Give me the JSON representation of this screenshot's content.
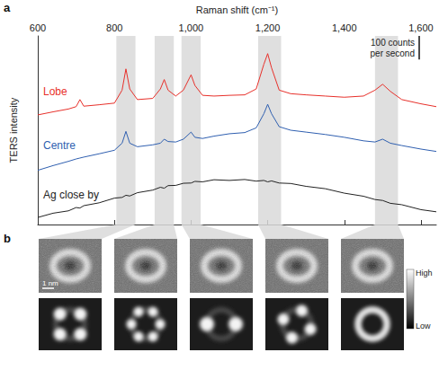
{
  "panel_labels": [
    "a",
    "b"
  ],
  "chart_data": {
    "type": "line",
    "x_label": "Raman shift (cm⁻¹)",
    "y_label": "TERS intensity",
    "x": [
      600,
      640,
      680,
      700,
      710,
      720,
      760,
      800,
      820,
      830,
      840,
      860,
      900,
      920,
      930,
      940,
      960,
      980,
      1000,
      1010,
      1030,
      1060,
      1100,
      1140,
      1170,
      1190,
      1200,
      1210,
      1230,
      1260,
      1300,
      1350,
      1400,
      1450,
      1480,
      1500,
      1520,
      1550,
      1600,
      1640
    ],
    "series": [
      {
        "name": "Lobe",
        "color": "#e8302a",
        "values": [
          465,
          478,
          490,
          500,
          530,
          502,
          508,
          515,
          570,
          660,
          575,
          530,
          535,
          575,
          615,
          570,
          545,
          570,
          635,
          590,
          548,
          545,
          548,
          550,
          575,
          680,
          725,
          665,
          570,
          555,
          550,
          545,
          540,
          545,
          570,
          595,
          565,
          530,
          512,
          500
        ]
      },
      {
        "name": "Centre",
        "color": "#2f5fb0",
        "values": [
          230,
          250,
          268,
          278,
          282,
          286,
          300,
          315,
          345,
          395,
          345,
          330,
          338,
          345,
          362,
          352,
          350,
          362,
          392,
          370,
          365,
          375,
          385,
          390,
          410,
          470,
          510,
          470,
          415,
          400,
          392,
          382,
          370,
          355,
          350,
          362,
          345,
          335,
          320,
          310
        ]
      },
      {
        "name": "Ag close by",
        "color": "#222222",
        "values": [
          30,
          48,
          58,
          72,
          70,
          80,
          92,
          112,
          115,
          124,
          121,
          135,
          146,
          158,
          154,
          165,
          166,
          175,
          176,
          183,
          181,
          190,
          187,
          191,
          184,
          187,
          181,
          185,
          176,
          174,
          162,
          152,
          133,
          120,
          106,
          102,
          90,
          84,
          63,
          54
        ]
      }
    ],
    "xlim": [
      600,
      1640
    ],
    "xticks": [
      600,
      800,
      {
        "value": 1000,
        "label": "1,000"
      },
      {
        "value": 1200,
        "label": "1,200"
      },
      {
        "value": 1400,
        "label": "1,400"
      },
      {
        "value": 1600,
        "label": "1,600"
      }
    ],
    "ylim": [
      0,
      800
    ],
    "tick_labels": "x",
    "grid": false,
    "bands": [
      [
        805,
        855
      ],
      [
        905,
        955
      ],
      [
        975,
        1025
      ],
      [
        1175,
        1235
      ],
      [
        1480,
        1540
      ]
    ],
    "scale_bar": {
      "value": 100,
      "label": "100 counts per second"
    }
  },
  "panel_b": {
    "scale_bar_label": "1 nm",
    "colorbar": {
      "high": "High",
      "low": "Low"
    }
  }
}
